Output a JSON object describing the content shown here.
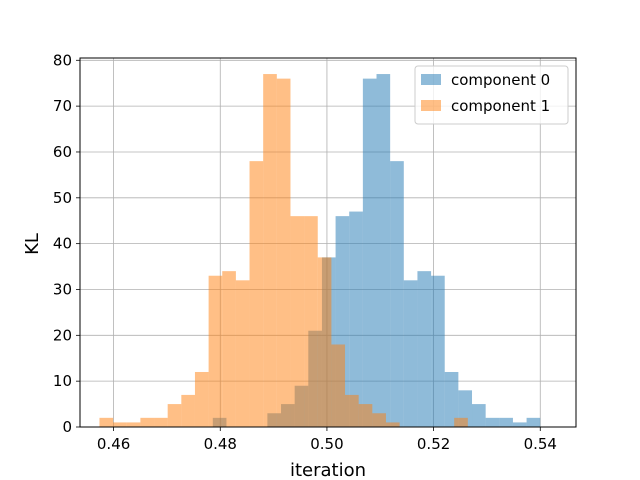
{
  "chart_data": {
    "type": "bar",
    "chart_subtype": "overlaid-histogram",
    "title": "",
    "xlabel": "iteration",
    "ylabel": "KL",
    "xlim": [
      0.4537,
      0.5467
    ],
    "ylim": [
      0,
      80.5
    ],
    "xticks": [
      0.46,
      0.48,
      0.5,
      0.52,
      0.54
    ],
    "xtick_labels": [
      "0.46",
      "0.48",
      "0.50",
      "0.52",
      "0.54"
    ],
    "yticks": [
      0,
      10,
      20,
      30,
      40,
      50,
      60,
      70,
      80
    ],
    "ytick_labels": [
      "0",
      "10",
      "20",
      "30",
      "40",
      "50",
      "60",
      "70",
      "80"
    ],
    "grid": true,
    "legend_position": "top-right",
    "series": [
      {
        "name": "component 0",
        "color": "#1f77b4",
        "opacity": 0.5,
        "bin_start": 0.4786,
        "bin_width": 0.002558,
        "counts": [
          2,
          0,
          0,
          0,
          3,
          5,
          9,
          21,
          37,
          46,
          47,
          76,
          77,
          58,
          32,
          34,
          33,
          12,
          8,
          5,
          2,
          2,
          1,
          2
        ]
      },
      {
        "name": "component 1",
        "color": "#ff7f0e",
        "opacity": 0.5,
        "bin_start": 0.45735,
        "bin_width": 0.002558,
        "counts": [
          2,
          1,
          1,
          2,
          2,
          5,
          7,
          12,
          33,
          34,
          32,
          58,
          77,
          76,
          46,
          46,
          37,
          18,
          7,
          5,
          3,
          1,
          0,
          0,
          0,
          0,
          2
        ]
      }
    ]
  }
}
